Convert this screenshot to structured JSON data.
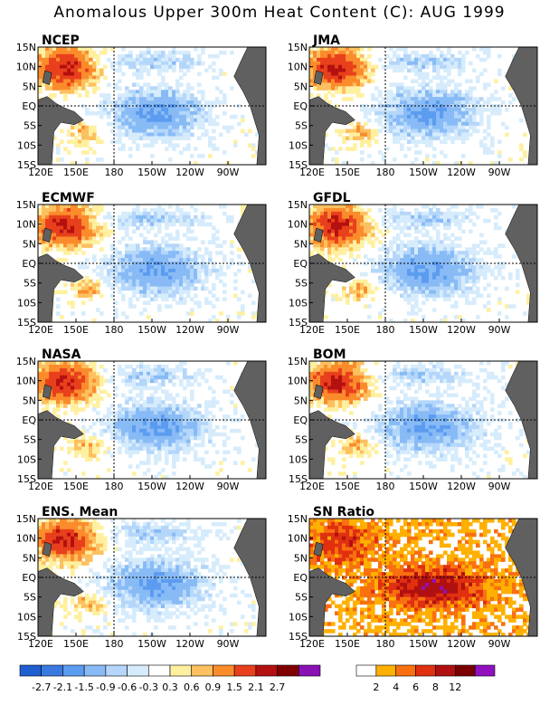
{
  "title": "Anomalous Upper 300m Heat Content (C): AUG 1999",
  "chart_data": [
    {
      "type": "heatmap",
      "title": "NCEP",
      "ylabels": [
        "15N",
        "10N",
        "5N",
        "EQ",
        "5S",
        "10S",
        "15S"
      ],
      "xlabels": [
        "120E",
        "150E",
        "180",
        "150W",
        "120W",
        "90W"
      ],
      "field": "anomaly",
      "seed": 1
    },
    {
      "type": "heatmap",
      "title": "JMA",
      "ylabels": [
        "15N",
        "10N",
        "5N",
        "EQ",
        "5S",
        "10S",
        "15S"
      ],
      "xlabels": [
        "120E",
        "150E",
        "180",
        "150W",
        "120W",
        "90W"
      ],
      "field": "anomaly",
      "seed": 2
    },
    {
      "type": "heatmap",
      "title": "ECMWF",
      "ylabels": [
        "15N",
        "10N",
        "5N",
        "EQ",
        "5S",
        "10S",
        "15S"
      ],
      "xlabels": [
        "120E",
        "150E",
        "180",
        "150W",
        "120W",
        "90W"
      ],
      "field": "anomaly",
      "seed": 3
    },
    {
      "type": "heatmap",
      "title": "GFDL",
      "ylabels": [
        "15N",
        "10N",
        "5N",
        "EQ",
        "5S",
        "10S",
        "15S"
      ],
      "xlabels": [
        "120E",
        "150E",
        "180",
        "150W",
        "120W",
        "90W"
      ],
      "field": "anomaly",
      "seed": 4
    },
    {
      "type": "heatmap",
      "title": "NASA",
      "ylabels": [
        "15N",
        "10N",
        "5N",
        "EQ",
        "5S",
        "10S",
        "15S"
      ],
      "xlabels": [
        "120E",
        "150E",
        "180",
        "150W",
        "120W",
        "90W"
      ],
      "field": "anomaly",
      "seed": 5
    },
    {
      "type": "heatmap",
      "title": "BOM",
      "ylabels": [
        "15N",
        "10N",
        "5N",
        "EQ",
        "5S",
        "10S",
        "15S"
      ],
      "xlabels": [
        "120E",
        "150E",
        "180",
        "150W",
        "120W",
        "90W"
      ],
      "field": "anomaly",
      "seed": 6
    },
    {
      "type": "heatmap",
      "title": "ENS. Mean",
      "ylabels": [
        "15N",
        "10N",
        "5N",
        "EQ",
        "5S",
        "10S",
        "15S"
      ],
      "xlabels": [
        "120E",
        "150E",
        "180",
        "150W",
        "120W",
        "90W"
      ],
      "field": "anomaly",
      "seed": 7
    },
    {
      "type": "heatmap",
      "title": "SN Ratio",
      "ylabels": [
        "15N",
        "10N",
        "5N",
        "EQ",
        "5S",
        "10S",
        "15S"
      ],
      "xlabels": [
        "120E",
        "150E",
        "180",
        "150W",
        "120W",
        "90W"
      ],
      "field": "snratio",
      "seed": 8
    }
  ],
  "anomaly_colorbar": {
    "labels": [
      "-2.7",
      "-2.1",
      "-1.5",
      "-0.9",
      "-0.6",
      "-0.3",
      "0.3",
      "0.6",
      "0.9",
      "1.5",
      "2.1",
      "2.7"
    ],
    "colors": [
      "#1f5fd0",
      "#3a7ae0",
      "#5c9cf0",
      "#88bbf6",
      "#b4d6fa",
      "#d6ecfc",
      "#ffffff",
      "#fff0a0",
      "#fdc060",
      "#fb8c2c",
      "#e8401c",
      "#b41010",
      "#800000",
      "#8a10b4"
    ]
  },
  "snratio_colorbar": {
    "labels": [
      "2",
      "4",
      "6",
      "8",
      "12"
    ],
    "colors": [
      "#ffffff",
      "#ffb000",
      "#f87010",
      "#e03010",
      "#b01010",
      "#7a0000",
      "#9010c0"
    ]
  },
  "land_color": "#606060"
}
